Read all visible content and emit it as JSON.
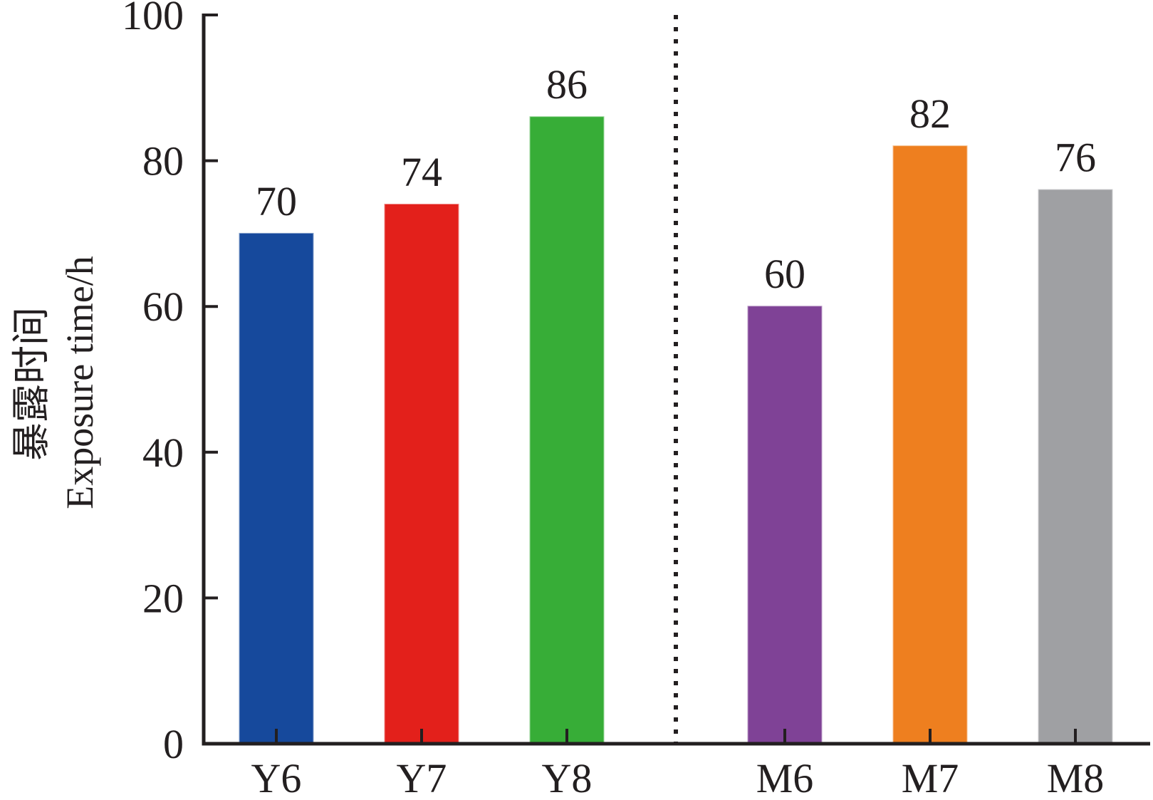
{
  "chart_data": {
    "type": "bar",
    "categories": [
      "Y6",
      "Y7",
      "Y8",
      "M6",
      "M7",
      "M8"
    ],
    "values": [
      70,
      74,
      86,
      60,
      82,
      76
    ],
    "colors": [
      "#16499c",
      "#e3201b",
      "#37ad37",
      "#7f4296",
      "#ee7f1f",
      "#9fa0a3"
    ],
    "groups": [
      [
        "Y6",
        "Y7",
        "Y8"
      ],
      [
        "M6",
        "M7",
        "M8"
      ]
    ],
    "ylabel_zh": "暴露时间",
    "ylabel": "Exposure time/h",
    "ylim": [
      0,
      100
    ],
    "yticks": [
      0,
      20,
      40,
      60,
      80,
      100
    ],
    "data_labels": true,
    "grid": false,
    "legend": "none"
  }
}
